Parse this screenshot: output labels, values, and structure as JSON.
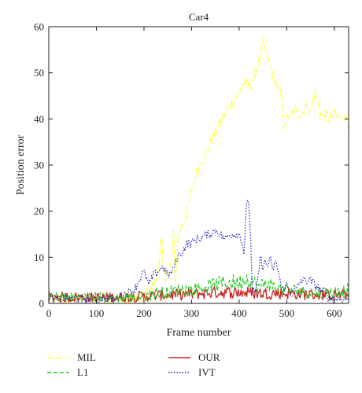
{
  "chart_data": {
    "type": "line",
    "title": "Car4",
    "xlabel": "Frame number",
    "ylabel": "Position error",
    "xlim": [
      0,
      630
    ],
    "ylim": [
      0,
      60
    ],
    "xticks": [
      0,
      100,
      200,
      300,
      400,
      500,
      600
    ],
    "yticks": [
      0,
      10,
      20,
      30,
      40,
      50,
      60
    ],
    "grid": false,
    "legend_placement": "below-plot",
    "legend_order": [
      "MIL",
      "OUR",
      "L1",
      "IVT"
    ],
    "series": [
      {
        "name": "MIL",
        "color": "#ffff33",
        "style": "dashdot",
        "x": [
          0,
          50,
          100,
          150,
          200,
          215,
          225,
          233,
          237,
          241,
          250,
          258,
          262,
          266,
          270,
          275,
          280,
          290,
          300,
          310,
          320,
          330,
          340,
          350,
          360,
          370,
          380,
          390,
          400,
          410,
          420,
          430,
          440,
          450,
          455,
          460,
          470,
          480,
          490,
          495,
          500,
          510,
          520,
          530,
          540,
          550,
          560,
          565,
          570,
          580,
          590,
          600,
          610,
          620,
          630
        ],
        "y": [
          1,
          0.9,
          1,
          1,
          1,
          3,
          5,
          9,
          15,
          6,
          6,
          9,
          15,
          5,
          12,
          16,
          17,
          20,
          24,
          28,
          31,
          32,
          35,
          37,
          39,
          41,
          43,
          44,
          46,
          48,
          47,
          49,
          52,
          56,
          55,
          53,
          50,
          47,
          44,
          38,
          40,
          41,
          42,
          41,
          43,
          42,
          46,
          44,
          41,
          41,
          40,
          41,
          40,
          41,
          39
        ]
      },
      {
        "name": "OUR",
        "color": "#cc2222",
        "style": "solid",
        "x": [
          0,
          50,
          100,
          150,
          200,
          250,
          300,
          350,
          400,
          450,
          500,
          550,
          600,
          630
        ],
        "y": [
          1,
          1,
          0.9,
          1,
          1.2,
          1.5,
          1.6,
          2,
          2,
          1.8,
          1.8,
          1.6,
          1.5,
          1.5
        ]
      },
      {
        "name": "L1",
        "color": "#22cc22",
        "style": "dashed",
        "x": [
          0,
          50,
          100,
          150,
          200,
          225,
          250,
          275,
          300,
          325,
          350,
          375,
          400,
          420,
          440,
          460,
          475,
          500,
          550,
          600,
          630
        ],
        "y": [
          1,
          1,
          1,
          1,
          1,
          2,
          2,
          2.5,
          2.5,
          3,
          3.5,
          4,
          4,
          5,
          3,
          4,
          3,
          2.5,
          2,
          2,
          2.5
        ]
      },
      {
        "name": "IVT",
        "color": "#2222bb",
        "style": "dotted",
        "x": [
          0,
          50,
          100,
          140,
          160,
          180,
          190,
          200,
          210,
          220,
          230,
          240,
          250,
          260,
          270,
          280,
          290,
          300,
          310,
          320,
          330,
          340,
          350,
          360,
          370,
          380,
          390,
          400,
          405,
          410,
          415,
          420,
          423,
          428,
          435,
          440,
          445,
          450,
          455,
          460,
          465,
          470,
          475,
          480,
          490,
          500,
          510,
          520,
          530,
          540,
          550,
          560,
          570,
          580,
          590,
          600,
          610,
          620,
          630
        ],
        "y": [
          1,
          1,
          1,
          1,
          2,
          3,
          5,
          7,
          4,
          6,
          7,
          8,
          6,
          7,
          10,
          11,
          13,
          13,
          14,
          14,
          15,
          15,
          16,
          15,
          14,
          15,
          15,
          15,
          14,
          11,
          21,
          22,
          17,
          3,
          2,
          6,
          10,
          8,
          9,
          8,
          10,
          7,
          9,
          8,
          3,
          4,
          2,
          3,
          5,
          5,
          5,
          4,
          3,
          2,
          1,
          1,
          1,
          1,
          1
        ]
      }
    ]
  }
}
